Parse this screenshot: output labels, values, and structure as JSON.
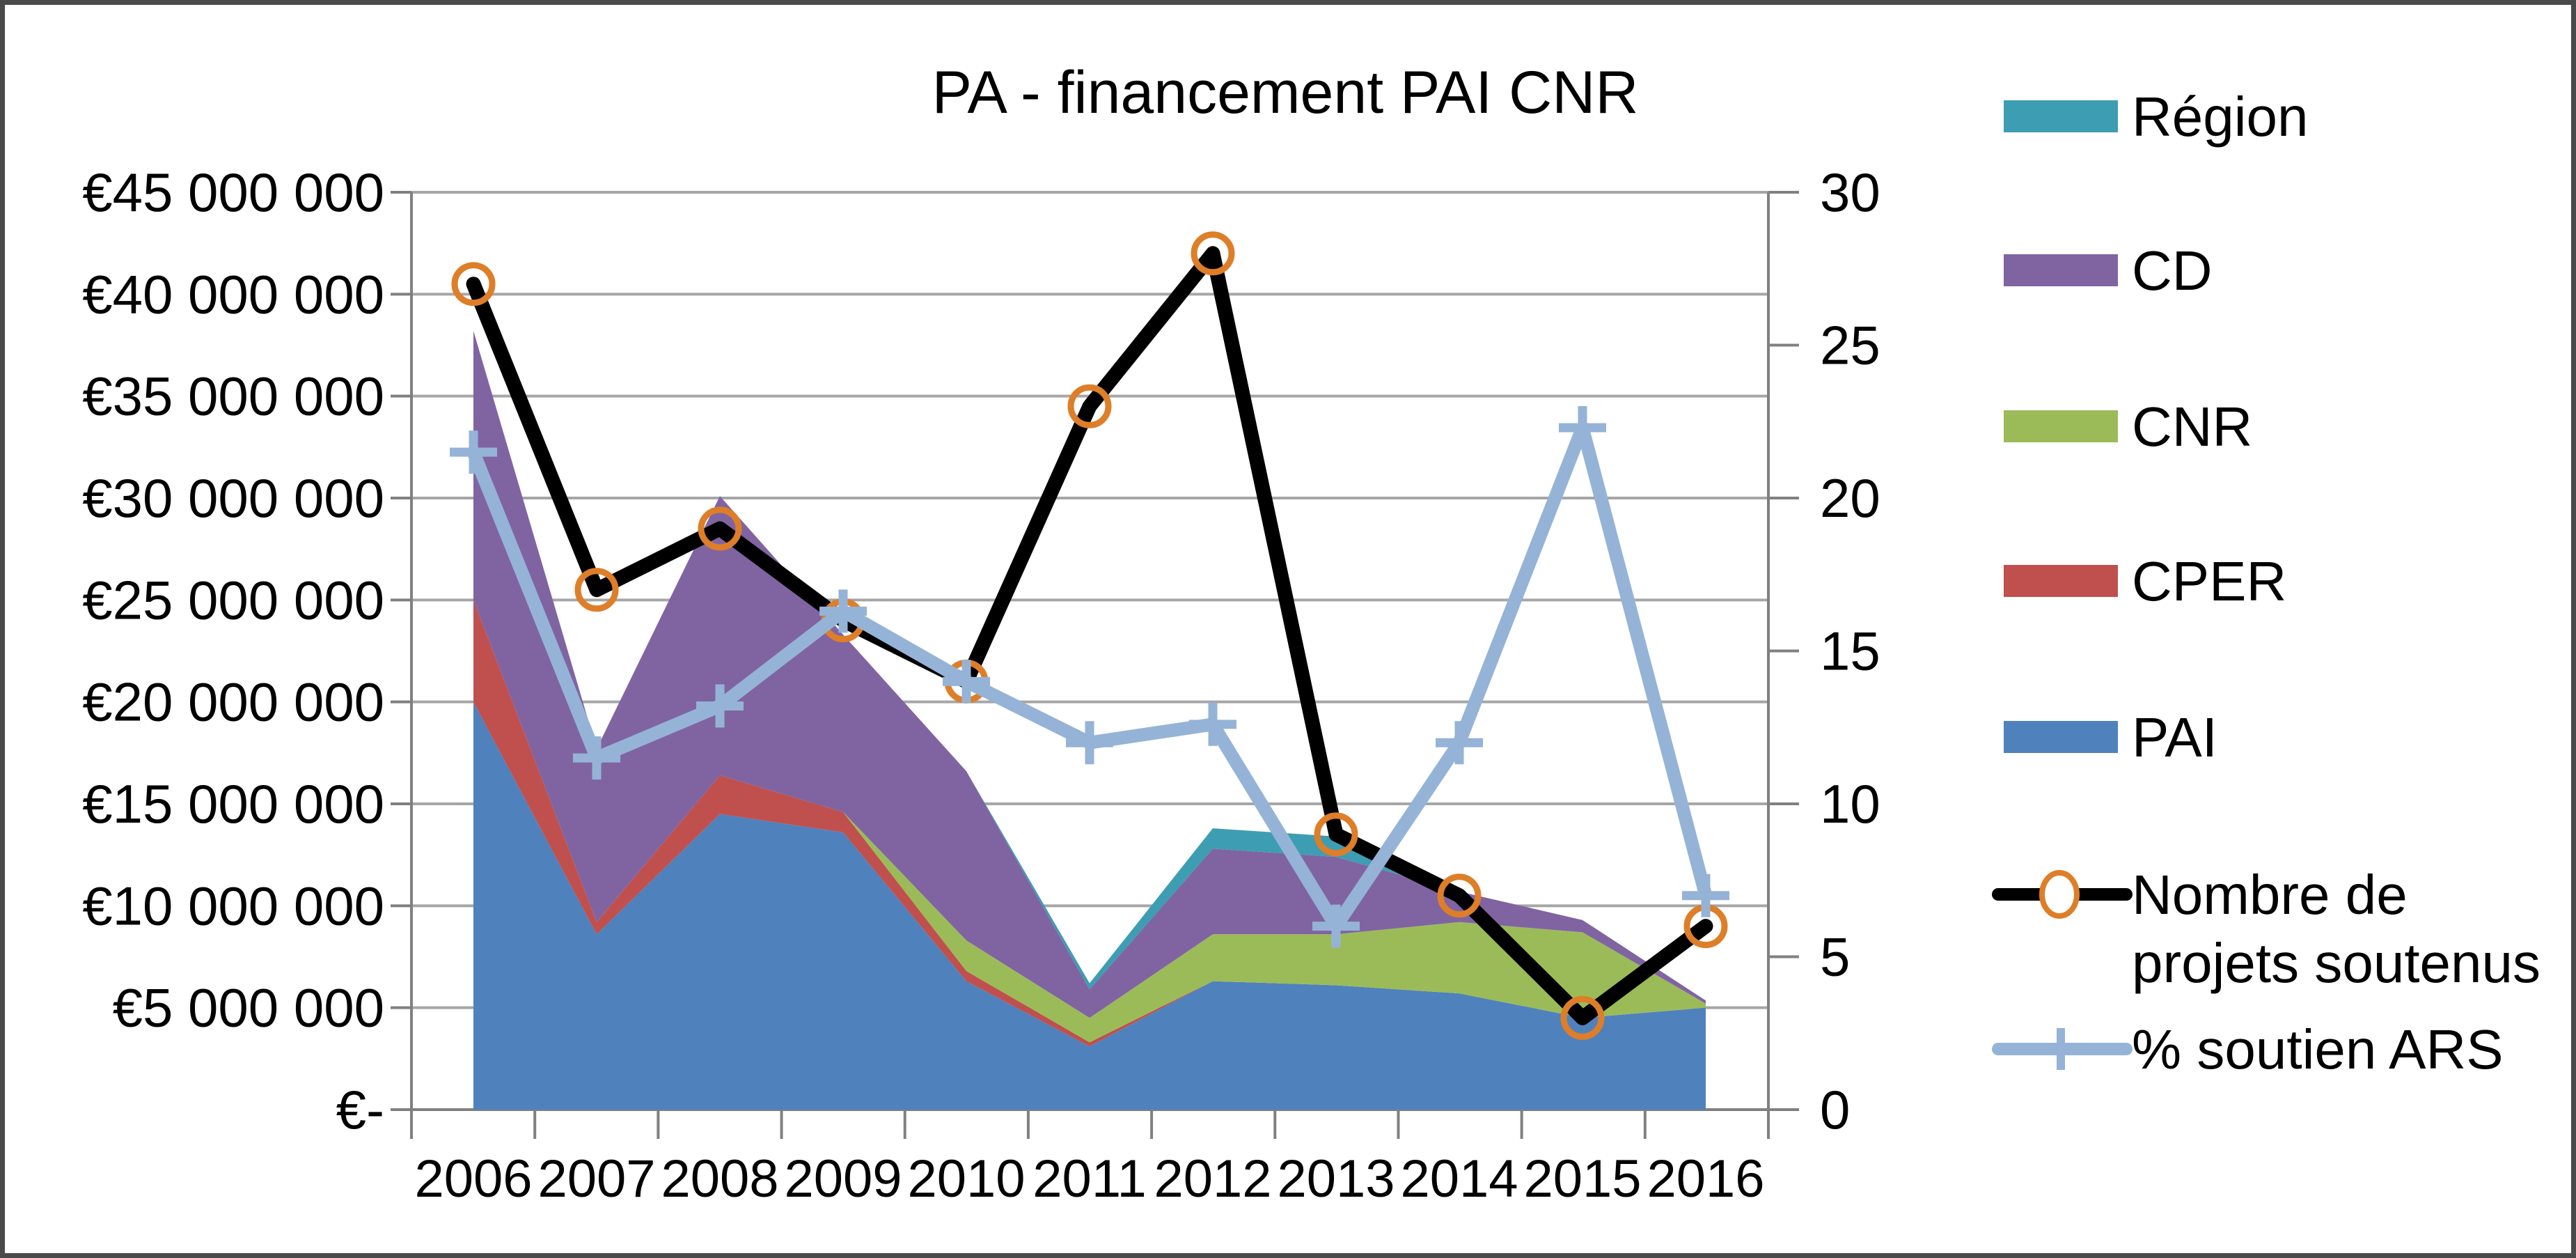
{
  "window": {
    "background": "#FFFFFF",
    "border_color": "#4A4A4A"
  },
  "chart_data": {
    "type": "combo-stacked-area-line",
    "title": "PA - financement PAI CNR",
    "categories": [
      "2006",
      "2007",
      "2008",
      "2009",
      "2010",
      "2011",
      "2012",
      "2013",
      "2014",
      "2015",
      "2016"
    ],
    "left_axis": {
      "unit": "EUR",
      "min": 0,
      "max": 45000000,
      "tick_step": 5000000,
      "tick_labels": [
        "€-",
        "€5 000 000",
        "€10 000 000",
        "€15 000 000",
        "€20 000 000",
        "€25 000 000",
        "€30 000 000",
        "€35 000 000",
        "€40 000 000",
        "€45 000 000"
      ]
    },
    "right_axis": {
      "min": 0,
      "max": 30,
      "tick_step": 5,
      "tick_labels": [
        "0",
        "5",
        "10",
        "15",
        "20",
        "25",
        "30"
      ]
    },
    "grid": {
      "show_horizontal": true,
      "color": "#A6A6A6",
      "axis_color": "#808080"
    },
    "area_series_bottom_to_top": [
      {
        "name": "PAI",
        "color": "#4F81BD",
        "values_millions": [
          20.0,
          8.6,
          14.5,
          13.6,
          6.3,
          3.1,
          6.3,
          6.1,
          5.7,
          4.5,
          5.0
        ]
      },
      {
        "name": "CPER",
        "color": "#C0504D",
        "values_millions": [
          5.0,
          0.6,
          1.9,
          1.0,
          0.5,
          0.2,
          0.0,
          0.0,
          0.0,
          0.0,
          0.0
        ]
      },
      {
        "name": "CNR",
        "color": "#9BBB59",
        "values_millions": [
          0.0,
          0.0,
          0.0,
          0.0,
          1.5,
          1.2,
          2.3,
          2.5,
          3.5,
          4.2,
          0.2
        ]
      },
      {
        "name": "CD",
        "color": "#8064A2",
        "values_millions": [
          13.2,
          8.5,
          13.7,
          8.7,
          8.3,
          1.4,
          4.2,
          3.8,
          1.5,
          0.6,
          0.15
        ]
      },
      {
        "name": "Région",
        "color": "#3D9DB3",
        "values_millions": [
          0.0,
          0.0,
          0.0,
          0.0,
          0.0,
          0.3,
          1.0,
          1.0,
          0.0,
          0.0,
          0.0
        ]
      }
    ],
    "line_series": [
      {
        "name": "Nombre de projets soutenus",
        "axis": "right",
        "color": "#000000",
        "marker": "circle",
        "marker_color": "#DE7E28",
        "values": [
          27,
          17,
          19,
          16,
          14,
          23,
          28,
          9,
          7,
          3,
          6
        ]
      },
      {
        "name": "% soutien ARS",
        "axis": "right",
        "color": "#95B3D7",
        "marker": "plus",
        "marker_color": "#95B3D7",
        "values": [
          21.5,
          11.5,
          13.2,
          16.3,
          14,
          12,
          12.6,
          6,
          12,
          22.3,
          7
        ]
      }
    ],
    "legend": {
      "position": "right",
      "items": [
        {
          "label_lines": [
            "Région"
          ],
          "swatch": "rect",
          "color": "#3D9DB3"
        },
        {
          "label_lines": [
            "CD"
          ],
          "swatch": "rect",
          "color": "#8064A2"
        },
        {
          "label_lines": [
            "CNR"
          ],
          "swatch": "rect",
          "color": "#9BBB59"
        },
        {
          "label_lines": [
            "CPER"
          ],
          "swatch": "rect",
          "color": "#C0504D"
        },
        {
          "label_lines": [
            "PAI"
          ],
          "swatch": "rect",
          "color": "#4F81BD"
        },
        {
          "label_lines": [
            "Nombre de",
            "projets soutenus"
          ],
          "swatch": "line-circle",
          "color": "#000000",
          "marker_color": "#DE7E28"
        },
        {
          "label_lines": [
            "% soutien ARS"
          ],
          "swatch": "line-plus",
          "color": "#95B3D7",
          "marker_color": "#95B3D7"
        }
      ]
    }
  }
}
